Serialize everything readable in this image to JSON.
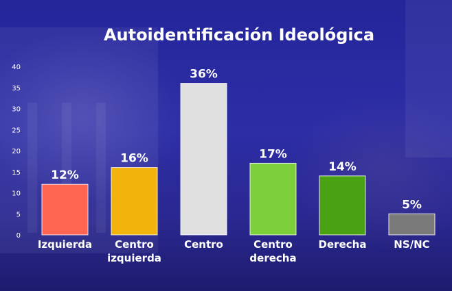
{
  "chart_data": {
    "type": "bar",
    "title": "Autoidentificación Ideológica",
    "xlabel": "",
    "ylabel": "",
    "ylim": [
      0,
      40
    ],
    "yticks": [
      0,
      5,
      10,
      15,
      20,
      25,
      30,
      35,
      40
    ],
    "categories": [
      [
        "Izquierda"
      ],
      [
        "Centro",
        "izquierda"
      ],
      [
        "Centro"
      ],
      [
        "Centro",
        "derecha"
      ],
      [
        "Derecha"
      ],
      [
        "NS/NC"
      ]
    ],
    "values": [
      12,
      16,
      36,
      17,
      14,
      5
    ],
    "value_labels": [
      "12%",
      "16%",
      "36%",
      "17%",
      "14%",
      "5%"
    ],
    "colors": [
      "#ff6550",
      "#f2b40c",
      "#e0e0e0",
      "#7ccf3a",
      "#4aa113",
      "#7a7a7a"
    ],
    "grid": false,
    "legend": "none"
  }
}
